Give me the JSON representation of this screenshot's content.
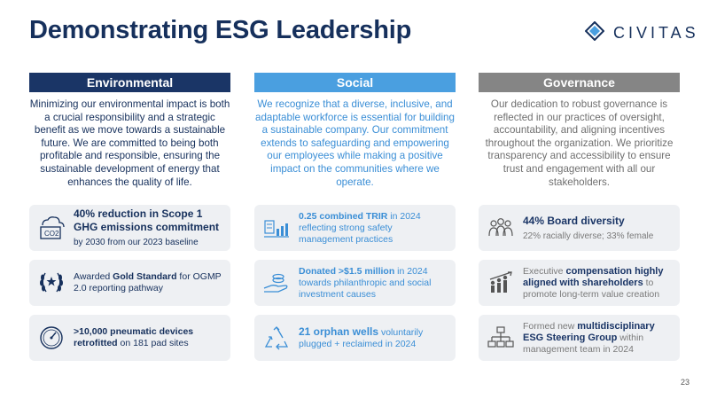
{
  "title": "Demonstrating ESG Leadership",
  "logo": {
    "text": "CIVITAS",
    "icon": "civitas-diamond-logo-icon"
  },
  "columns": {
    "environmental": {
      "heading": "Environmental",
      "body": "Minimizing our environmental impact is both a crucial responsibility and a strategic benefit as we move towards a sustainable future.  We are committed to being both profitable and responsible, ensuring the sustainable development of energy that enhances the quality of life.",
      "cards": [
        {
          "icon": "co2-cloud-icon",
          "bold": "40% reduction in Scope 1 GHG emissions commitment",
          "rest": "by 2030 from our 2023 baseline"
        },
        {
          "icon": "laurel-wreath-icon",
          "pre": "Awarded ",
          "bold": "Gold Standard",
          "rest": " for OGMP 2.0 reporting pathway"
        },
        {
          "icon": "pressure-gauge-icon",
          "bold": ">10,000 pneumatic devices retrofitted",
          "rest": " on 181 pad sites"
        }
      ]
    },
    "social": {
      "heading": "Social",
      "body": "We recognize that a diverse, inclusive, and adaptable workforce is essential for building a sustainable company.  Our commitment extends to safeguarding and empowering our employees while making a positive impact on the communities where we operate.",
      "cards": [
        {
          "icon": "safety-chart-icon",
          "bold": "0.25 combined TRIR",
          "rest": " in 2024 reflecting strong safety management practices"
        },
        {
          "icon": "hand-coins-icon",
          "bold": "Donated >$1.5 million",
          "rest": " in 2024 towards philanthropic and social investment causes"
        },
        {
          "icon": "recycle-icon",
          "bold": "21 orphan wells",
          "rest": " voluntarily plugged + reclaimed in 2024"
        }
      ]
    },
    "governance": {
      "heading": "Governance",
      "body": "Our dedication to robust governance is reflected in our practices of oversight, accountability, and aligning incentives throughout the organization.  We prioritize transparency and accessibility to ensure trust and engagement with all our stakeholders.",
      "cards": [
        {
          "icon": "people-group-icon",
          "bold": "44% Board diversity",
          "rest": "22% racially diverse; 33% female"
        },
        {
          "icon": "growth-people-icon",
          "pre": "Executive ",
          "bold": "compensation highly aligned with shareholders",
          "rest": " to promote long-term value creation"
        },
        {
          "icon": "org-chart-icon",
          "pre": "Formed new ",
          "bold": "multidisciplinary ESG Steering Group",
          "rest": " within management team in 2024"
        }
      ]
    }
  },
  "page_number": "23"
}
